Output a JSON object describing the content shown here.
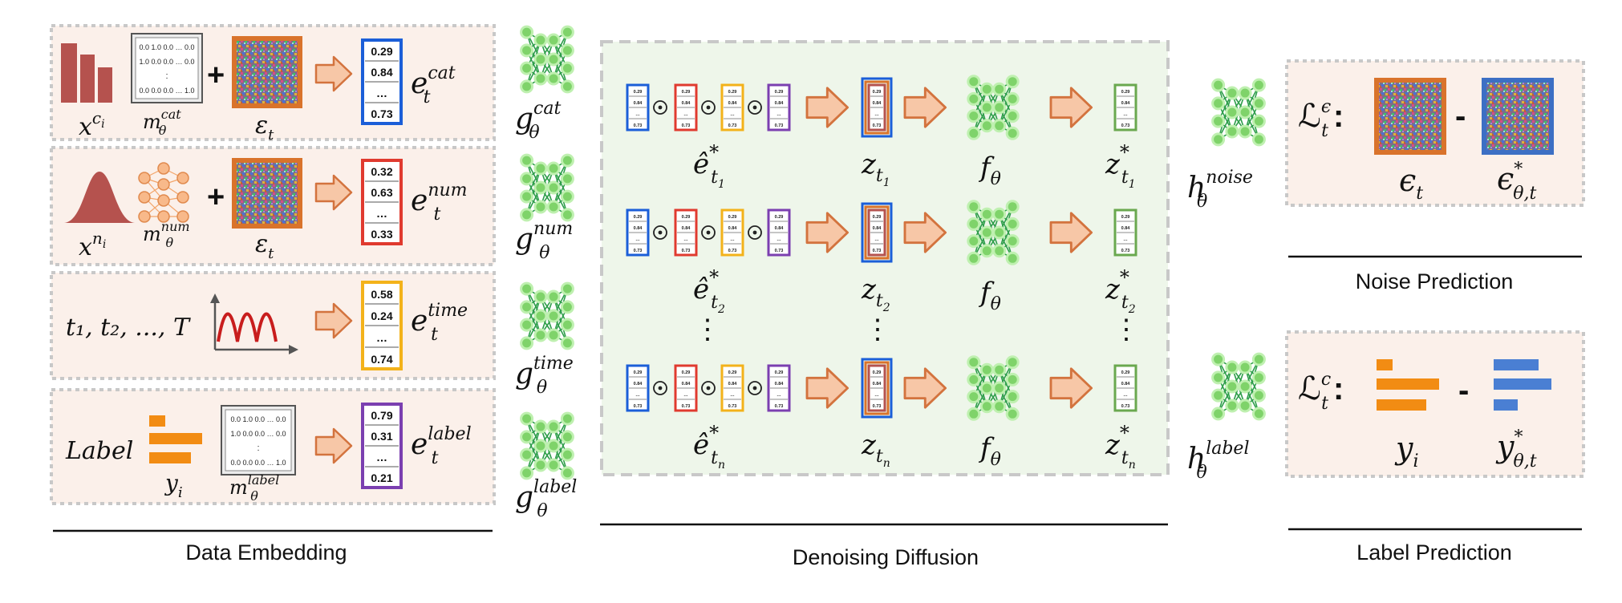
{
  "colors": {
    "panel_fill": "#fbf0ea",
    "panel_border": "#c8c8c8",
    "diffusion_fill": "#eef6ea",
    "bar_red": "#b5524e",
    "arrow_orange": "#f7c7a7",
    "arrow_stroke": "#d3733e",
    "net_green": "#2e9e4a",
    "vec_blue": "#1b5ed8",
    "vec_red": "#e03a2f",
    "vec_yellow": "#f3b21a",
    "vec_purple": "#7b3fb0",
    "vec_green": "#6aa84f",
    "noise_frame_orange": "#d9732b",
    "noise_frame_blue": "#3c6fc4",
    "label_bar_orange": "#f28c13",
    "label_bar_blue": "#4a7fd3"
  },
  "icons": [
    "bar-chart-icon",
    "bell-curve-icon",
    "sine-wave-icon",
    "noise-image-icon",
    "neural-network-icon",
    "right-arrow-icon"
  ],
  "embedding": {
    "cat": {
      "input": "x^{c_i}",
      "input_base": "x",
      "input_sup": "c",
      "input_sup_sub": "i",
      "mapper_base": "m",
      "mapper_sub": "θ",
      "mapper_sup": "cat",
      "matrix_rows": [
        "0.0 1.0 0.0 … 0.0",
        "1.0 0.0 0.0 … 0.0",
        ":",
        "0.0 0.0 0.0 … 1.0"
      ],
      "plus": "+",
      "noise_base": "ε",
      "noise_sub": "t",
      "vector": [
        "0.29",
        "0.84",
        "…",
        "0.73"
      ],
      "out_base": "e",
      "out_sub": "t",
      "out_sup": "cat"
    },
    "num": {
      "input_base": "x",
      "input_sup": "n",
      "input_sup_sub": "i",
      "mapper_base": "m",
      "mapper_sub": "θ",
      "mapper_sup": "num",
      "plus": "+",
      "noise_base": "ε",
      "noise_sub": "t",
      "vector": [
        "0.32",
        "0.63",
        "…",
        "0.33"
      ],
      "out_base": "e",
      "out_sub": "t",
      "out_sup": "num"
    },
    "time": {
      "input": "t₁, t₂, ..., T",
      "vector": [
        "0.58",
        "0.24",
        "…",
        "0.74"
      ],
      "out_base": "e",
      "out_sub": "t",
      "out_sup": "time"
    },
    "label": {
      "input": "Label",
      "y_base": "y",
      "y_sub": "i",
      "matrix_rows": [
        "0.0 1.0 0.0 … 0.0",
        "1.0 0.0 0.0 … 0.0",
        ":",
        "0.0 0.0 0.0 … 1.0"
      ],
      "mapper_base": "m",
      "mapper_sub": "θ",
      "mapper_sup": "label",
      "vector": [
        "0.79",
        "0.31",
        "…",
        "0.21"
      ],
      "out_base": "e",
      "out_sub": "t",
      "out_sup": "label"
    },
    "caption": "Data Embedding"
  },
  "encoders": [
    {
      "base": "g",
      "sub": "θ",
      "sup": "cat"
    },
    {
      "base": "g",
      "sub": "θ",
      "sup": "num"
    },
    {
      "base": "g",
      "sub": "θ",
      "sup": "time"
    },
    {
      "base": "g",
      "sub": "θ",
      "sup": "label"
    }
  ],
  "diffusion": {
    "mini_vector": [
      "0.29",
      "0.84",
      "…",
      "0.73"
    ],
    "odot": "⊙",
    "rows": [
      {
        "e_base": "ê",
        "e_sup": "*",
        "e_sub": "t",
        "e_sub_sub": "1",
        "z_base": "z",
        "z_sub": "t",
        "z_sub_sub": "1",
        "f_base": "f",
        "f_sub": "θ",
        "zs_base": "z",
        "zs_sup": "*",
        "zs_sub": "t",
        "zs_sub_sub": "1"
      },
      {
        "e_base": "ê",
        "e_sup": "*",
        "e_sub": "t",
        "e_sub_sub": "2",
        "z_base": "z",
        "z_sub": "t",
        "z_sub_sub": "2",
        "f_base": "f",
        "f_sub": "θ",
        "zs_base": "z",
        "zs_sup": "*",
        "zs_sub": "t",
        "zs_sub_sub": "2"
      },
      {
        "e_base": "ê",
        "e_sup": "*",
        "e_sub": "t",
        "e_sub_sub": "n",
        "z_base": "z",
        "z_sub": "t",
        "z_sub_sub": "n",
        "f_base": "f",
        "f_sub": "θ",
        "zs_base": "z",
        "zs_sup": "*",
        "zs_sub": "t",
        "zs_sub_sub": "n"
      }
    ],
    "vdots": "⋮",
    "caption": "Denoising Diffusion"
  },
  "heads": {
    "noise": {
      "base": "h",
      "sub": "θ",
      "sup": "noise"
    },
    "label": {
      "base": "h",
      "sub": "θ",
      "sup": "label"
    }
  },
  "noise_prediction": {
    "loss_base": "ℒ",
    "loss_sub": "t",
    "loss_sup": "ϵ",
    "colon": ":",
    "minus": "-",
    "a_base": "ϵ",
    "a_sub": "t",
    "b_base": "ϵ",
    "b_sup": "*",
    "b_sub": "θ,t",
    "caption": "Noise Prediction"
  },
  "label_prediction": {
    "loss_base": "ℒ",
    "loss_sub": "t",
    "loss_sup": "c",
    "colon": ":",
    "minus": "-",
    "a_base": "y",
    "a_sub": "i",
    "b_base": "y",
    "b_sup": "*",
    "b_sub": "θ,t",
    "caption": "Label Prediction"
  }
}
